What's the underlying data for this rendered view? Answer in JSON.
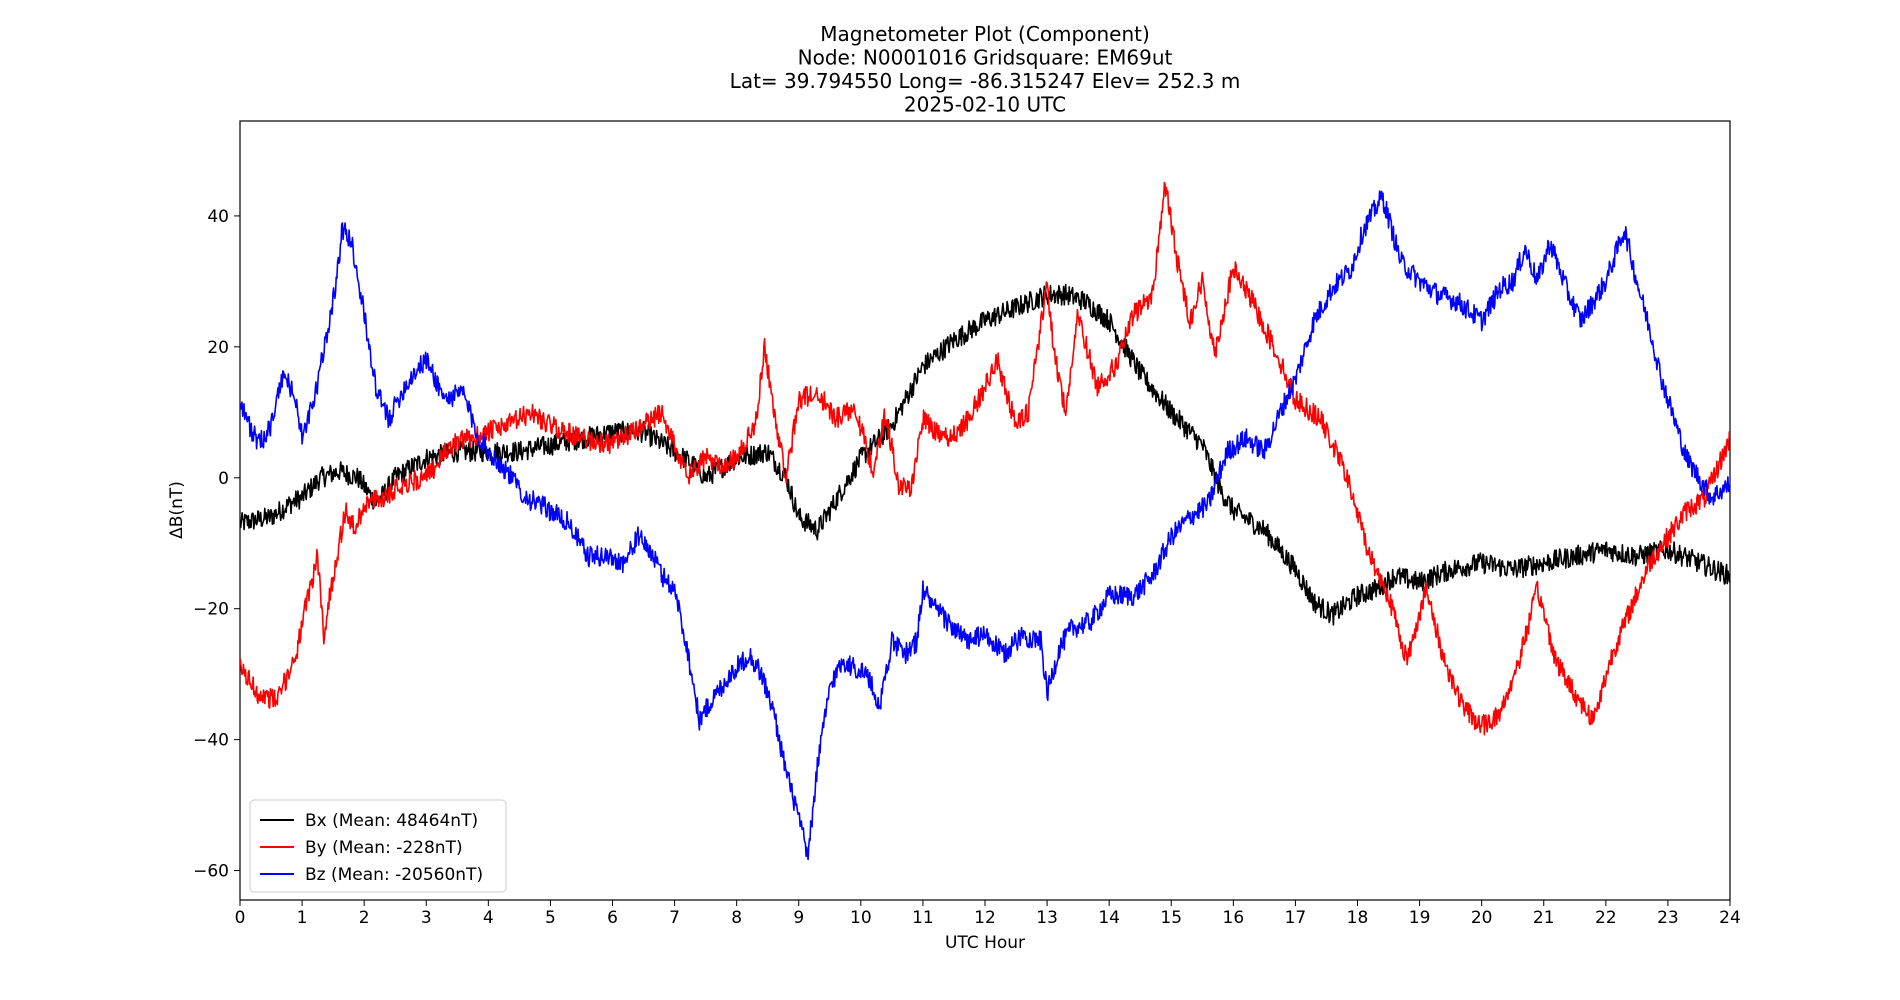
{
  "chart_data": {
    "type": "line",
    "title_lines": [
      "Magnetometer Plot (Component)",
      "Node:  N0001016     Gridsquare:  EM69ut",
      "Lat= 39.794550    Long= -86.315247    Elev= 252.3 m",
      "2025-02-10  UTC"
    ],
    "xlabel": "UTC Hour",
    "ylabel": "ΔB(nT)",
    "xlim": [
      0,
      24
    ],
    "ylim": [
      -64.5,
      54.5
    ],
    "xticks": [
      0,
      1,
      2,
      3,
      4,
      5,
      6,
      7,
      8,
      9,
      10,
      11,
      12,
      13,
      14,
      15,
      16,
      17,
      18,
      19,
      20,
      21,
      22,
      23,
      24
    ],
    "yticks": [
      40,
      20,
      0,
      -20,
      -40,
      -60
    ],
    "ytick_labels": [
      "40",
      "20",
      "0",
      "−20",
      "−40",
      "−60"
    ],
    "grid": false,
    "legend_position": "lower-left",
    "series": [
      {
        "name": "Bx (Mean: 48464nT)",
        "color": "#000000",
        "x": [
          0,
          0.5,
          0.8,
          1.0,
          1.3,
          1.6,
          1.9,
          2.2,
          2.5,
          3.0,
          3.5,
          4.0,
          4.5,
          5.0,
          5.5,
          6.0,
          6.5,
          7.0,
          7.3,
          7.5,
          8.0,
          8.5,
          8.8,
          9.0,
          9.3,
          9.5,
          10.0,
          10.5,
          11.0,
          11.5,
          12.0,
          12.5,
          13.0,
          13.3,
          13.6,
          14.0,
          14.5,
          15.0,
          15.5,
          15.8,
          16.0,
          16.5,
          17.0,
          17.3,
          17.6,
          18.0,
          18.3,
          18.6,
          19.0,
          19.5,
          20.0,
          20.5,
          21.0,
          21.5,
          22.0,
          22.5,
          23.0,
          23.5,
          24.0
        ],
        "values": [
          -7,
          -6,
          -4,
          -3,
          0,
          1,
          0,
          -4,
          0,
          3,
          4,
          4,
          4,
          5,
          6,
          7,
          7,
          4,
          2,
          0,
          3,
          4,
          0,
          -6,
          -8,
          -5,
          3,
          8,
          17,
          21,
          24,
          26,
          28,
          28,
          27,
          24,
          16,
          10,
          5,
          -2,
          -5,
          -8,
          -14,
          -19,
          -21,
          -18,
          -17,
          -15,
          -16,
          -14,
          -13,
          -14,
          -13,
          -12,
          -11,
          -12,
          -11,
          -13,
          -15
        ]
      },
      {
        "name": "By (Mean: -228nT)",
        "color": "#ff0000",
        "x": [
          0,
          0.3,
          0.6,
          0.9,
          1.1,
          1.25,
          1.35,
          1.5,
          1.7,
          1.85,
          2.0,
          2.3,
          2.6,
          3.0,
          3.4,
          3.7,
          4.0,
          4.3,
          4.7,
          5.0,
          5.5,
          6.0,
          6.5,
          6.8,
          7.0,
          7.2,
          7.5,
          7.8,
          8.0,
          8.3,
          8.45,
          8.6,
          8.8,
          9.0,
          9.3,
          9.6,
          9.9,
          10.2,
          10.4,
          10.6,
          10.8,
          11.0,
          11.3,
          11.6,
          11.9,
          12.2,
          12.5,
          12.7,
          13.0,
          13.1,
          13.3,
          13.5,
          13.8,
          14.1,
          14.4,
          14.7,
          14.9,
          15.1,
          15.3,
          15.5,
          15.7,
          16.0,
          16.3,
          16.7,
          17.0,
          17.4,
          17.8,
          18.2,
          18.5,
          18.8,
          19.1,
          19.4,
          19.7,
          20.0,
          20.3,
          20.6,
          20.9,
          21.2,
          21.5,
          21.8,
          22.1,
          22.4,
          22.7,
          23.0,
          23.3,
          23.6,
          24.0
        ],
        "values": [
          -29,
          -33,
          -34,
          -27,
          -18,
          -12,
          -24,
          -15,
          -5,
          -8,
          -4,
          -3,
          -1,
          0,
          5,
          6,
          7,
          8,
          10,
          8,
          6,
          5,
          8,
          10,
          5,
          0,
          3,
          2,
          3,
          8,
          20,
          10,
          0,
          12,
          13,
          9,
          11,
          1,
          10,
          -1,
          -2,
          9,
          6,
          7,
          12,
          18,
          8,
          10,
          30,
          20,
          10,
          25,
          14,
          17,
          25,
          28,
          45,
          33,
          24,
          30,
          19,
          32,
          27,
          19,
          12,
          9,
          1,
          -12,
          -18,
          -28,
          -17,
          -28,
          -35,
          -38,
          -36,
          -28,
          -17,
          -28,
          -33,
          -37,
          -27,
          -20,
          -13,
          -9,
          -5,
          -3,
          6
        ]
      },
      {
        "name": "Bz (Mean: -20560nT)",
        "color": "#0000ff",
        "x": [
          0,
          0.15,
          0.3,
          0.5,
          0.7,
          0.9,
          1.0,
          1.2,
          1.4,
          1.55,
          1.65,
          1.8,
          2.0,
          2.2,
          2.4,
          2.6,
          2.8,
          3.0,
          3.3,
          3.6,
          3.8,
          4.0,
          4.3,
          4.6,
          5.0,
          5.3,
          5.6,
          5.9,
          6.2,
          6.4,
          6.6,
          6.8,
          7.0,
          7.2,
          7.4,
          7.6,
          7.9,
          8.2,
          8.4,
          8.6,
          8.8,
          9.0,
          9.15,
          9.3,
          9.5,
          9.7,
          9.9,
          10.1,
          10.3,
          10.5,
          10.7,
          10.9,
          11.0,
          11.2,
          11.4,
          11.7,
          12.0,
          12.3,
          12.6,
          12.9,
          13.0,
          13.2,
          13.4,
          13.7,
          14.0,
          14.4,
          14.7,
          15.0,
          15.3,
          15.6,
          15.9,
          16.2,
          16.5,
          16.8,
          17.0,
          17.3,
          17.6,
          17.9,
          18.1,
          18.4,
          18.7,
          19.0,
          19.3,
          19.6,
          20.0,
          20.3,
          20.5,
          20.7,
          20.9,
          21.1,
          21.4,
          21.6,
          21.8,
          22.0,
          22.15,
          22.3,
          22.5,
          22.7,
          22.9,
          23.1,
          23.3,
          23.5,
          23.7,
          24.0
        ],
        "values": [
          12,
          8,
          5,
          8,
          16,
          12,
          6,
          12,
          22,
          30,
          38,
          36,
          25,
          13,
          9,
          13,
          16,
          18,
          12,
          13,
          7,
          4,
          1,
          -3,
          -5,
          -7,
          -12,
          -12,
          -13,
          -9,
          -11,
          -15,
          -17,
          -26,
          -37,
          -34,
          -30,
          -27,
          -30,
          -36,
          -45,
          -52,
          -58,
          -44,
          -32,
          -28,
          -29,
          -30,
          -35,
          -25,
          -27,
          -25,
          -17,
          -20,
          -22,
          -25,
          -24,
          -27,
          -24,
          -25,
          -33,
          -26,
          -23,
          -22,
          -18,
          -18,
          -15,
          -9,
          -6,
          -4,
          4,
          6,
          4,
          11,
          15,
          24,
          29,
          32,
          38,
          43,
          33,
          30,
          28,
          27,
          24,
          29,
          30,
          35,
          30,
          36,
          28,
          24,
          27,
          30,
          34,
          38,
          30,
          23,
          15,
          9,
          3,
          0,
          -3,
          -1
        ]
      }
    ]
  }
}
